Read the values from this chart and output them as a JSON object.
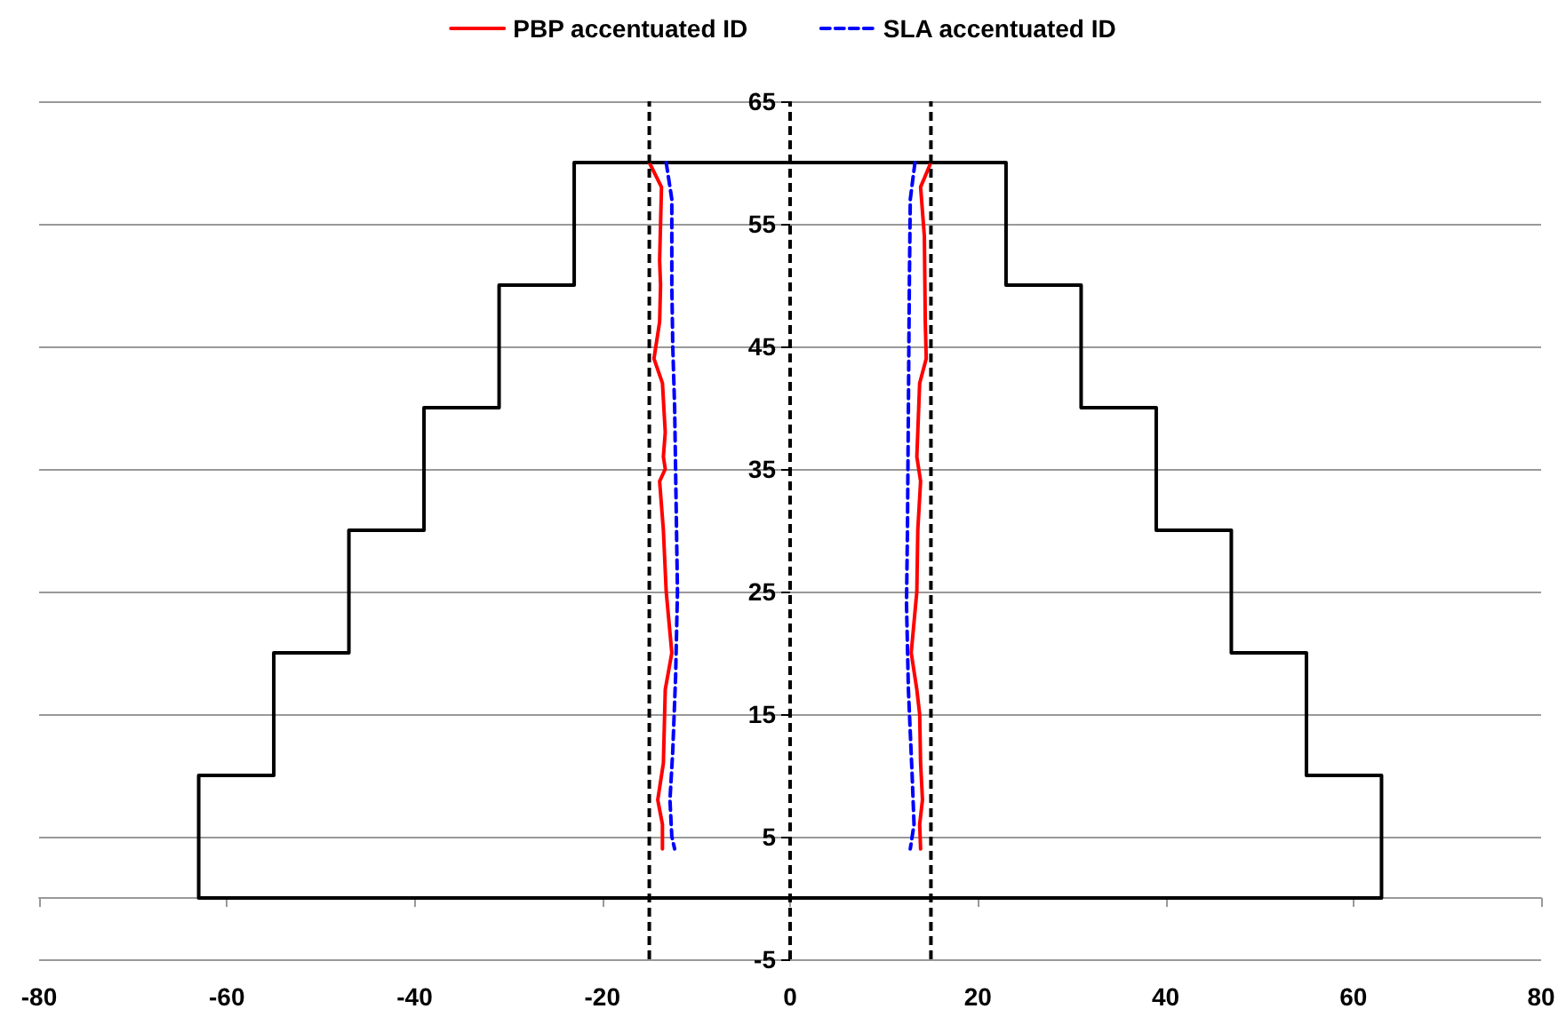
{
  "chart_data": {
    "type": "line",
    "xlim": [
      -80,
      80
    ],
    "xticks": [
      -80,
      -60,
      -40,
      -20,
      0,
      20,
      40,
      60,
      80
    ],
    "ylim": [
      -5,
      65
    ],
    "yticks": [
      -5,
      5,
      15,
      25,
      35,
      45,
      55,
      65
    ],
    "grid": "y",
    "legend": "top",
    "marker": "none",
    "series": [
      {
        "color": "#000000",
        "line_style": "solid",
        "x": [
          -63,
          -63,
          63,
          63,
          55,
          55,
          47,
          47,
          39,
          39,
          31,
          31,
          23,
          23,
          -23,
          -23,
          -31,
          -31,
          -39,
          -39,
          -47,
          -47,
          -55,
          -55,
          -63,
          -63
        ],
        "values": [
          10,
          0,
          0,
          10,
          10,
          20,
          20,
          30,
          30,
          40,
          40,
          50,
          50,
          60,
          60,
          50,
          50,
          40,
          40,
          30,
          30,
          20,
          20,
          10,
          10,
          0
        ]
      },
      {
        "name": "PBP accentuated ID",
        "color": "#ff0000",
        "line_style": "solid",
        "x": [
          -15,
          -13.7,
          -13.8,
          -13.9,
          -13.8,
          -13.9,
          -14.5,
          -13.6,
          -13.3,
          -13.5,
          -13.3,
          -13.9,
          -13.5,
          -13.2,
          -12.6,
          -13.3,
          -13.4,
          -13.5,
          -14.1,
          -13.6,
          -13.6
        ],
        "values": [
          60,
          58,
          55,
          52,
          50,
          47,
          44,
          42,
          38,
          36,
          35,
          34,
          30,
          25,
          20,
          17,
          14,
          11,
          8,
          6,
          4
        ]
      },
      {
        "name": "SLA accentuated ID",
        "color": "#0000ff",
        "line_style": "dashed",
        "x": [
          -13.2,
          -12.6,
          -12.6,
          -12.5,
          -12.3,
          -12.2,
          -12.0,
          -12.2,
          -12.5,
          -12.8,
          -12.6,
          -12.3
        ],
        "values": [
          60,
          57,
          50,
          45,
          40,
          35,
          25,
          18,
          12,
          8,
          5,
          4
        ]
      },
      {
        "color": "#ff0000",
        "line_style": "solid",
        "x": [
          15,
          13.9,
          14.3,
          14.4,
          14.5,
          13.8,
          13.5,
          13.9,
          13.6,
          13.5,
          12.9,
          13.5,
          13.8,
          13.9,
          14.1,
          13.8,
          13.9
        ],
        "values": [
          60,
          58,
          54,
          47,
          44,
          42,
          36,
          34,
          30,
          25,
          20,
          17,
          15,
          11,
          8,
          6,
          4
        ]
      },
      {
        "color": "#0000ff",
        "line_style": "dashed",
        "x": [
          13.3,
          12.8,
          12.7,
          12.6,
          12.5,
          12.4,
          12.6,
          13.0,
          13.2,
          12.8
        ],
        "values": [
          60,
          57,
          50,
          40,
          30,
          24,
          17,
          10,
          6,
          4
        ]
      }
    ],
    "ref_lines": [
      {
        "axis": "x",
        "value": -15,
        "color": "#000000",
        "line_style": "dashed"
      },
      {
        "axis": "x",
        "value": 0,
        "color": "#000000",
        "line_style": "dashed"
      },
      {
        "axis": "x",
        "value": 15,
        "color": "#000000",
        "line_style": "dashed"
      }
    ]
  }
}
